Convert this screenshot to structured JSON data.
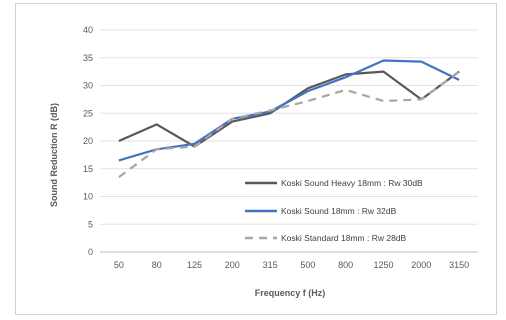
{
  "chart_data": {
    "type": "line",
    "xlabel": "Frequency f (Hz)",
    "ylabel": "Sound Reduction R (dB)",
    "categories": [
      "50",
      "80",
      "125",
      "200",
      "315",
      "500",
      "800",
      "1250",
      "2000",
      "3150"
    ],
    "ylim": [
      0,
      40
    ],
    "yticks": [
      0,
      5,
      10,
      15,
      20,
      25,
      30,
      35,
      40
    ],
    "grid": "horizontal",
    "legend_position": "inside-bottom-right",
    "series": [
      {
        "name": "Koski Sound Heavy 18mm : Rw 30dB",
        "color": "#595959",
        "dash": "solid",
        "values": [
          20,
          23,
          19,
          23.5,
          25,
          29.5,
          32,
          32.5,
          27.5,
          32.5
        ]
      },
      {
        "name": "Koski Sound 18mm : Rw 32dB",
        "color": "#4472c4",
        "dash": "solid",
        "values": [
          16.5,
          18.5,
          19.5,
          24,
          25.3,
          29,
          31.5,
          34.5,
          34.3,
          31
        ]
      },
      {
        "name": "Koski Standard 18mm : Rw 28dB",
        "color": "#a6a6a6",
        "dash": "dashed",
        "values": [
          13.5,
          18.5,
          19,
          24,
          25.5,
          27.2,
          29.2,
          27.2,
          27.5,
          32.5
        ]
      }
    ]
  }
}
